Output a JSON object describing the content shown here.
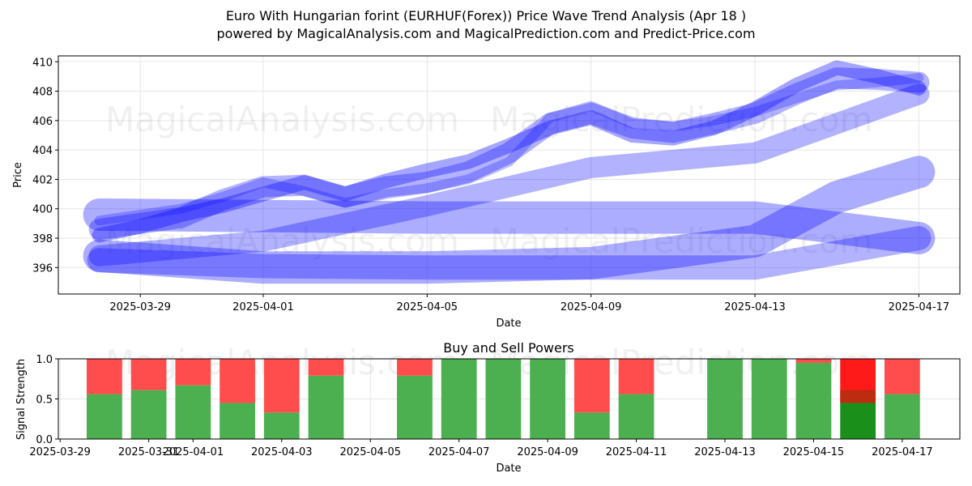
{
  "header": {
    "title_line1": "Euro With Hungarian forint (EURHUF(Forex)) Price Wave Trend Analysis (Apr 18 )",
    "title_line2": "powered by MagicalAnalysis.com and MagicalPrediction.com and Predict-Price.com"
  },
  "watermarks": [
    "MagicalAnalysis.com",
    "MagicalPrediction.com"
  ],
  "colors": {
    "wave": "#0000ff",
    "buy": "#4caf50",
    "sell": "#ff4d4d",
    "buy_strong": "#1a8f1a",
    "sell_strong": "#ff1a1a",
    "grid": "#e6e6e6"
  },
  "chart_data": [
    {
      "type": "area",
      "xlabel": "Date",
      "ylabel": "Price",
      "x_ticks": [
        "2025-03-29",
        "2025-04-01",
        "2025-04-05",
        "2025-04-09",
        "2025-04-13",
        "2025-04-17"
      ],
      "y_ticks": [
        396,
        398,
        400,
        402,
        404,
        406,
        408,
        410
      ],
      "xlim": [
        "2025-03-27",
        "2025-04-18"
      ],
      "ylim": [
        394.2,
        410.4
      ],
      "grid": true,
      "series": [
        {
          "x": [
            "2025-03-28",
            "2025-03-29",
            "2025-03-30",
            "2025-03-31",
            "2025-04-01",
            "2025-04-02",
            "2025-04-03",
            "2025-04-04",
            "2025-04-05",
            "2025-04-06",
            "2025-04-07",
            "2025-04-08",
            "2025-04-09",
            "2025-04-10",
            "2025-04-11",
            "2025-04-12",
            "2025-04-13",
            "2025-04-14",
            "2025-04-15",
            "2025-04-16",
            "2025-04-17"
          ],
          "y": [
            398.6,
            399.0,
            399.4,
            400.6,
            401.5,
            401.6,
            400.8,
            401.5,
            401.8,
            402.5,
            403.8,
            405.8,
            406.5,
            405.5,
            405.2,
            405.8,
            406.5,
            407.8,
            408.9,
            408.8,
            408.6
          ]
        },
        {
          "x": [
            "2025-03-28",
            "2025-03-29",
            "2025-03-30",
            "2025-03-31",
            "2025-04-01",
            "2025-04-02",
            "2025-04-03",
            "2025-04-04",
            "2025-04-05",
            "2025-04-06",
            "2025-04-07",
            "2025-04-08",
            "2025-04-09",
            "2025-04-10",
            "2025-04-11",
            "2025-04-12",
            "2025-04-13",
            "2025-04-14",
            "2025-04-15",
            "2025-04-16",
            "2025-04-17"
          ],
          "y": [
            398.2,
            398.8,
            399.6,
            400.2,
            401.0,
            401.8,
            401.0,
            401.9,
            402.6,
            403.2,
            404.3,
            405.5,
            406.2,
            405.0,
            404.8,
            405.5,
            406.8,
            408.4,
            409.6,
            409.0,
            408.2
          ]
        },
        {
          "x": [
            "2025-03-28",
            "2025-03-29",
            "2025-03-30",
            "2025-03-31",
            "2025-04-01",
            "2025-04-02",
            "2025-04-03",
            "2025-04-04",
            "2025-04-05",
            "2025-04-06",
            "2025-04-07",
            "2025-04-08",
            "2025-04-09",
            "2025-04-10",
            "2025-04-11",
            "2025-04-12",
            "2025-04-13",
            "2025-04-14",
            "2025-04-15",
            "2025-04-16",
            "2025-04-17"
          ],
          "y": [
            399.2,
            399.6,
            400.0,
            400.8,
            401.8,
            401.2,
            400.4,
            401.0,
            401.4,
            402.0,
            403.2,
            406.2,
            407.0,
            405.8,
            405.6,
            406.0,
            406.6,
            407.5,
            408.4,
            408.6,
            408.9
          ]
        },
        {
          "x": [
            "2025-03-28",
            "2025-04-01",
            "2025-04-05",
            "2025-04-09",
            "2025-04-13",
            "2025-04-17"
          ],
          "y": [
            396.8,
            397.8,
            400.2,
            402.8,
            403.8,
            407.8
          ]
        },
        {
          "x": [
            "2025-03-28",
            "2025-04-01",
            "2025-04-05",
            "2025-04-09",
            "2025-04-13",
            "2025-04-15",
            "2025-04-17"
          ],
          "y": [
            396.8,
            396.0,
            396.0,
            396.3,
            397.8,
            400.8,
            402.5
          ]
        },
        {
          "x": [
            "2025-03-28",
            "2025-04-01",
            "2025-04-05",
            "2025-04-09",
            "2025-04-13",
            "2025-04-17"
          ],
          "y": [
            399.6,
            399.5,
            399.4,
            399.4,
            399.4,
            398.0
          ]
        },
        {
          "x": [
            "2025-03-28",
            "2025-04-01",
            "2025-04-05",
            "2025-04-09",
            "2025-04-13",
            "2025-04-17"
          ],
          "y": [
            396.5,
            396.1,
            396.0,
            396.0,
            396.0,
            398.0
          ]
        }
      ]
    },
    {
      "type": "bar",
      "title": "Buy and Sell Powers",
      "xlabel": "Date",
      "ylabel": "Signal Strength",
      "x_ticks": [
        "2025-03-29",
        "2025-03-31",
        "2025-04-01",
        "2025-04-03",
        "2025-04-05",
        "2025-04-07",
        "2025-04-09",
        "2025-04-11",
        "2025-04-13",
        "2025-04-15",
        "2025-04-17"
      ],
      "y_ticks": [
        "0.0",
        "0.5",
        "1.0"
      ],
      "ylim": [
        0,
        1
      ],
      "categories": [
        "2025-03-30",
        "2025-03-31",
        "2025-04-01",
        "2025-04-02",
        "2025-04-03",
        "2025-04-04",
        "2025-04-06",
        "2025-04-07",
        "2025-04-08",
        "2025-04-09",
        "2025-04-10",
        "2025-04-11",
        "2025-04-13",
        "2025-04-14",
        "2025-04-15",
        "2025-04-16",
        "2025-04-17"
      ],
      "series": [
        {
          "name": "Buy",
          "values": [
            0.56,
            0.61,
            0.67,
            0.45,
            0.33,
            0.79,
            0.79,
            1.0,
            1.0,
            1.0,
            0.33,
            0.56,
            1.0,
            1.0,
            0.95,
            0.45,
            0.56
          ]
        },
        {
          "name": "Sell",
          "values": [
            0.44,
            0.39,
            0.33,
            0.55,
            0.67,
            0.21,
            0.21,
            0.0,
            0.0,
            0.0,
            0.67,
            0.44,
            0.0,
            0.0,
            0.05,
            0.55,
            0.44
          ]
        }
      ]
    }
  ]
}
